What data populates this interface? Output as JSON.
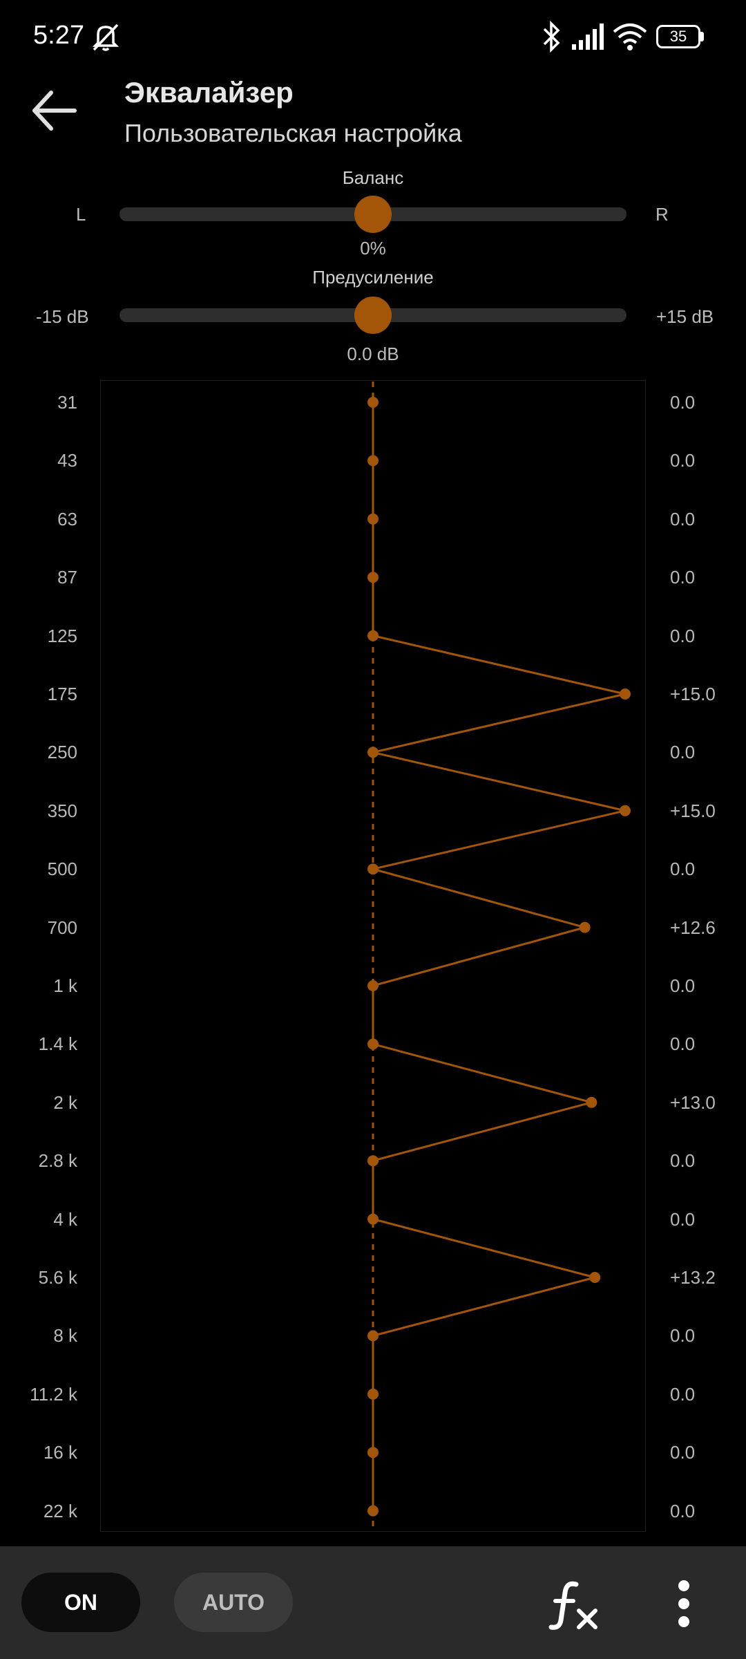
{
  "status_bar": {
    "time": "5:27",
    "battery": "35",
    "icons": [
      "mute-notification-icon",
      "bluetooth-icon",
      "signal-icon",
      "wifi-icon",
      "battery-icon"
    ]
  },
  "header": {
    "title": "Эквалайзер",
    "subtitle": "Пользовательская настройка"
  },
  "balance": {
    "label": "Баланс",
    "left": "L",
    "right": "R",
    "value": "0%",
    "position": 0.5
  },
  "preamp": {
    "label": "Предусиление",
    "min": "-15 dB",
    "max": "+15 dB",
    "value": "0.0 dB",
    "position": 0.5
  },
  "equalizer": {
    "range": [
      -15,
      15
    ],
    "bands": [
      {
        "freq": "31",
        "gain": "0.0",
        "value": 0
      },
      {
        "freq": "43",
        "gain": "0.0",
        "value": 0
      },
      {
        "freq": "63",
        "gain": "0.0",
        "value": 0
      },
      {
        "freq": "87",
        "gain": "0.0",
        "value": 0
      },
      {
        "freq": "125",
        "gain": "0.0",
        "value": 0
      },
      {
        "freq": "175",
        "gain": "+15.0",
        "value": 15
      },
      {
        "freq": "250",
        "gain": "0.0",
        "value": 0
      },
      {
        "freq": "350",
        "gain": "+15.0",
        "value": 15
      },
      {
        "freq": "500",
        "gain": "0.0",
        "value": 0
      },
      {
        "freq": "700",
        "gain": "+12.6",
        "value": 12.6
      },
      {
        "freq": "1 k",
        "gain": "0.0",
        "value": 0
      },
      {
        "freq": "1.4 k",
        "gain": "0.0",
        "value": 0
      },
      {
        "freq": "2 k",
        "gain": "+13.0",
        "value": 13
      },
      {
        "freq": "2.8 k",
        "gain": "0.0",
        "value": 0
      },
      {
        "freq": "4 k",
        "gain": "0.0",
        "value": 0
      },
      {
        "freq": "5.6 k",
        "gain": "+13.2",
        "value": 13.2
      },
      {
        "freq": "8 k",
        "gain": "0.0",
        "value": 0
      },
      {
        "freq": "11.2 k",
        "gain": "0.0",
        "value": 0
      },
      {
        "freq": "16 k",
        "gain": "0.0",
        "value": 0
      },
      {
        "freq": "22 k",
        "gain": "0.0",
        "value": 0
      }
    ]
  },
  "bottom_bar": {
    "on_label": "ON",
    "auto_label": "AUTO",
    "fx_icon": "effects-icon",
    "more_icon": "more-vertical-icon"
  },
  "colors": {
    "accent": "#a35607",
    "background": "#000000",
    "track": "#2e2e2e",
    "bottom_bar": "#2a2a2a"
  }
}
